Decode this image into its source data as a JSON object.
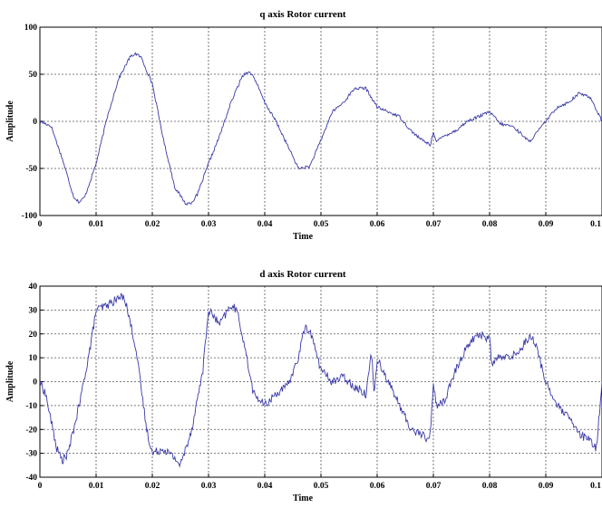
{
  "chart_data": [
    {
      "type": "line",
      "title": "q axis Rotor current",
      "xlabel": "Time",
      "ylabel": "Amplitude",
      "xlim": [
        0,
        0.1
      ],
      "ylim": [
        -100,
        100
      ],
      "xticks": [
        0,
        0.01,
        0.02,
        0.03,
        0.04,
        0.05,
        0.06,
        0.07,
        0.08,
        0.09,
        0.1
      ],
      "xtick_labels": [
        "0",
        "0.01",
        "0.02",
        "0.03",
        "0.04",
        "0.05",
        "0.06",
        "0.07",
        "0.08",
        "0.09",
        "0.1"
      ],
      "yticks": [
        -100,
        -50,
        0,
        50,
        100
      ],
      "ytick_labels": [
        "-100",
        "-50",
        "0",
        "50",
        "100"
      ],
      "grid": true,
      "color": "#3a3aa8",
      "series": [
        {
          "x": [
            0,
            0.002,
            0.004,
            0.006,
            0.007,
            0.008,
            0.01,
            0.012,
            0.014,
            0.016,
            0.017,
            0.018,
            0.02,
            0.022,
            0.024,
            0.026,
            0.027,
            0.028,
            0.03,
            0.032,
            0.034,
            0.036,
            0.037,
            0.038,
            0.04,
            0.042,
            0.044,
            0.046,
            0.048,
            0.05,
            0.052,
            0.054,
            0.056,
            0.058,
            0.06,
            0.062,
            0.064,
            0.066,
            0.068,
            0.0695,
            0.07,
            0.0705,
            0.072,
            0.074,
            0.076,
            0.078,
            0.08,
            0.082,
            0.084,
            0.086,
            0.087,
            0.088,
            0.09,
            0.092,
            0.094,
            0.096,
            0.098,
            0.1
          ],
          "y": [
            0,
            -5,
            -40,
            -80,
            -86,
            -80,
            -45,
            5,
            45,
            68,
            72,
            68,
            40,
            -20,
            -70,
            -88,
            -86,
            -78,
            -45,
            -15,
            20,
            48,
            53,
            48,
            20,
            0,
            -25,
            -50,
            -48,
            -20,
            10,
            20,
            35,
            35,
            15,
            10,
            5,
            -10,
            -20,
            -25,
            -10,
            -22,
            -15,
            -10,
            0,
            5,
            10,
            -3,
            -5,
            -15,
            -22,
            -15,
            0,
            15,
            20,
            30,
            25,
            0
          ]
        }
      ]
    },
    {
      "type": "line",
      "title": "d axis Rotor current",
      "xlabel": "Time",
      "ylabel": "Amplitude",
      "xlim": [
        0,
        0.1
      ],
      "ylim": [
        -40,
        40
      ],
      "xticks": [
        0,
        0.01,
        0.02,
        0.03,
        0.04,
        0.05,
        0.06,
        0.07,
        0.08,
        0.09,
        0.1
      ],
      "xtick_labels": [
        "0",
        "0.01",
        "0.02",
        "0.03",
        "0.04",
        "0.05",
        "0.06",
        "0.07",
        "0.08",
        "0.09",
        "0.1"
      ],
      "yticks": [
        -40,
        -30,
        -20,
        -10,
        0,
        10,
        20,
        30,
        40
      ],
      "ytick_labels": [
        "-40",
        "-30",
        "-20",
        "-10",
        "0",
        "10",
        "20",
        "30",
        "40"
      ],
      "grid": true,
      "color": "#3a3aa8",
      "series": [
        {
          "x": [
            0,
            0.001,
            0.003,
            0.004,
            0.005,
            0.007,
            0.009,
            0.01,
            0.012,
            0.014,
            0.015,
            0.017,
            0.019,
            0.02,
            0.022,
            0.024,
            0.025,
            0.027,
            0.029,
            0.03,
            0.032,
            0.034,
            0.035,
            0.036,
            0.038,
            0.04,
            0.042,
            0.044,
            0.046,
            0.047,
            0.048,
            0.05,
            0.052,
            0.054,
            0.056,
            0.058,
            0.059,
            0.0595,
            0.06,
            0.062,
            0.064,
            0.066,
            0.068,
            0.069,
            0.0695,
            0.07,
            0.0705,
            0.072,
            0.074,
            0.076,
            0.078,
            0.08,
            0.0805,
            0.081,
            0.083,
            0.085,
            0.087,
            0.088,
            0.09,
            0.092,
            0.094,
            0.096,
            0.098,
            0.099,
            0.1
          ],
          "y": [
            0,
            -5,
            -28,
            -33,
            -30,
            -10,
            15,
            30,
            32,
            35,
            36,
            15,
            -20,
            -30,
            -28,
            -32,
            -35,
            -20,
            5,
            30,
            24,
            32,
            30,
            20,
            -5,
            -10,
            -5,
            -2,
            10,
            22,
            22,
            5,
            0,
            2,
            -2,
            -5,
            12,
            -5,
            10,
            0,
            -10,
            -20,
            -22,
            -25,
            -20,
            0,
            -10,
            -8,
            5,
            15,
            20,
            18,
            5,
            10,
            10,
            12,
            19,
            17,
            0,
            -10,
            -15,
            -22,
            -25,
            -28,
            0
          ]
        }
      ]
    }
  ]
}
